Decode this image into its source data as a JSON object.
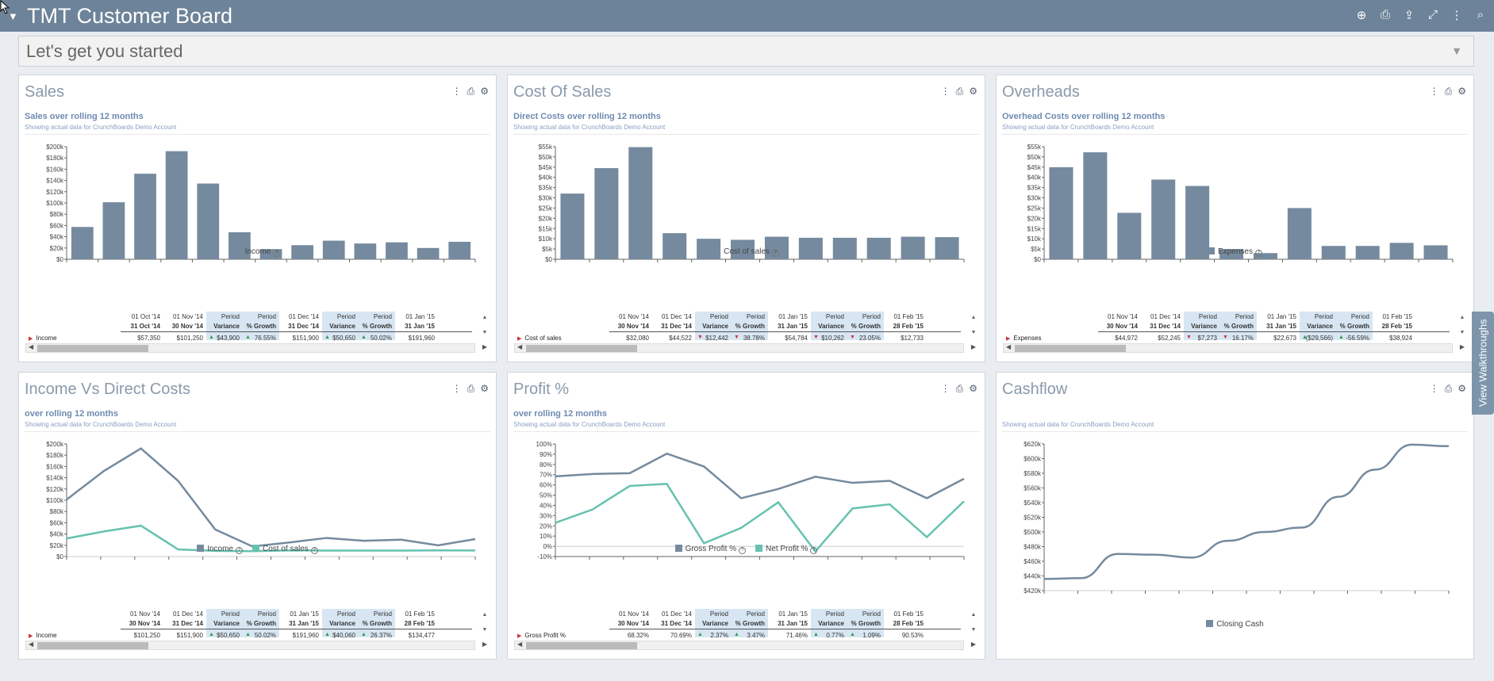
{
  "app": {
    "title": "TMT Customer Board"
  },
  "toolbar": {
    "icons": [
      "plus-circle-icon",
      "print-icon",
      "share-icon",
      "expand-icon",
      "more-vert-icon",
      "search-icon"
    ]
  },
  "started": {
    "label": "Let's get you started"
  },
  "walkthrough": {
    "label": "View Walkthroughs"
  },
  "colors": {
    "bar": "#758a9e",
    "line1": "#758a9e",
    "line2": "#66c2b0",
    "header": "#6d8399"
  },
  "panels": [
    {
      "id": "sales",
      "title": "Sales",
      "subtitle": "Sales over rolling 12 months",
      "desc": "Showing actual data for CrunchBoards Demo Account",
      "legend": [
        {
          "label": "Income",
          "color": "#758a9e"
        }
      ],
      "table": {
        "row_label": "Income",
        "headers": [
          {
            "top": "01 Oct '14",
            "bottom": "31 Oct '14",
            "value": "$57,350",
            "hl": false
          },
          {
            "top": "01 Nov '14",
            "bottom": "30 Nov '14",
            "value": "$101,250",
            "hl": false
          },
          {
            "top": "Period",
            "bottom": "Variance",
            "value": "$43,900",
            "hl": true,
            "arrow": "up"
          },
          {
            "top": "Period",
            "bottom": "% Growth",
            "value": "76.55%",
            "hl": true,
            "arrow": "up"
          },
          {
            "top": "01 Dec '14",
            "bottom": "31 Dec '14",
            "value": "$151,900",
            "hl": false
          },
          {
            "top": "Period",
            "bottom": "Variance",
            "value": "$50,650",
            "hl": true,
            "arrow": "up"
          },
          {
            "top": "Period",
            "bottom": "% Growth",
            "value": "50.02%",
            "hl": true,
            "arrow": "up"
          },
          {
            "top": "01 Jan '15",
            "bottom": "31 Jan '15",
            "value": "$191,960",
            "hl": false
          }
        ]
      }
    },
    {
      "id": "cost-of-sales",
      "title": "Cost Of Sales",
      "subtitle": "Direct Costs over rolling 12 months",
      "desc": "Showing actual data for CrunchBoards Demo Account",
      "legend": [
        {
          "label": "Cost of sales",
          "color": "#758a9e"
        }
      ],
      "table": {
        "row_label": "Cost of sales",
        "headers": [
          {
            "top": "01 Nov '14",
            "bottom": "30 Nov '14",
            "value": "$32,080",
            "hl": false
          },
          {
            "top": "01 Dec '14",
            "bottom": "31 Dec '14",
            "value": "$44,522",
            "hl": false
          },
          {
            "top": "Period",
            "bottom": "Variance",
            "value": "$12,442",
            "hl": true,
            "arrow": "down"
          },
          {
            "top": "Period",
            "bottom": "% Growth",
            "value": "38.78%",
            "hl": true,
            "arrow": "down"
          },
          {
            "top": "01 Jan '15",
            "bottom": "31 Jan '15",
            "value": "$54,784",
            "hl": false
          },
          {
            "top": "Period",
            "bottom": "Variance",
            "value": "$10,262",
            "hl": true,
            "arrow": "down"
          },
          {
            "top": "Period",
            "bottom": "% Growth",
            "value": "23.05%",
            "hl": true,
            "arrow": "down"
          },
          {
            "top": "01 Feb '15",
            "bottom": "28 Feb '15",
            "value": "$12,733",
            "hl": false
          }
        ]
      }
    },
    {
      "id": "overheads",
      "title": "Overheads",
      "subtitle": "Overhead Costs over rolling 12 months",
      "desc": "Showing actual data for CrunchBoards Demo Account",
      "legend": [
        {
          "label": "Expenses",
          "color": "#758a9e"
        }
      ],
      "table": {
        "row_label": "Expenses",
        "headers": [
          {
            "top": "01 Nov '14",
            "bottom": "30 Nov '14",
            "value": "$44,972",
            "hl": false
          },
          {
            "top": "01 Dec '14",
            "bottom": "31 Dec '14",
            "value": "$52,245",
            "hl": false
          },
          {
            "top": "Period",
            "bottom": "Variance",
            "value": "$7,273",
            "hl": true,
            "arrow": "down"
          },
          {
            "top": "Period",
            "bottom": "% Growth",
            "value": "16.17%",
            "hl": true,
            "arrow": "down"
          },
          {
            "top": "01 Jan '15",
            "bottom": "31 Jan '15",
            "value": "$22,673",
            "hl": false
          },
          {
            "top": "Period",
            "bottom": "Variance",
            "value": "($29,566)",
            "hl": true,
            "arrow": "up"
          },
          {
            "top": "Period",
            "bottom": "% Growth",
            "value": "-56.59%",
            "hl": true,
            "arrow": "up"
          },
          {
            "top": "01 Feb '15",
            "bottom": "28 Feb '15",
            "value": "$38,924",
            "hl": false
          }
        ]
      }
    },
    {
      "id": "income-vs-direct",
      "title": "Income Vs Direct Costs",
      "subtitle": "over rolling 12 months",
      "desc": "Showing actual data for CrunchBoards Demo Account",
      "legend": [
        {
          "label": "Income",
          "color": "#758a9e"
        },
        {
          "label": "Cost of sales",
          "color": "#66c2b0"
        }
      ],
      "table": {
        "row_label": "Income",
        "headers": [
          {
            "top": "01 Nov '14",
            "bottom": "30 Nov '14",
            "value": "$101,250",
            "hl": false
          },
          {
            "top": "01 Dec '14",
            "bottom": "31 Dec '14",
            "value": "$151,900",
            "hl": false
          },
          {
            "top": "Period",
            "bottom": "Variance",
            "value": "$50,650",
            "hl": true,
            "arrow": "up"
          },
          {
            "top": "Period",
            "bottom": "% Growth",
            "value": "50.02%",
            "hl": true,
            "arrow": "up"
          },
          {
            "top": "01 Jan '15",
            "bottom": "31 Jan '15",
            "value": "$191,960",
            "hl": false
          },
          {
            "top": "Period",
            "bottom": "Variance",
            "value": "$40,060",
            "hl": true,
            "arrow": "up"
          },
          {
            "top": "Period",
            "bottom": "% Growth",
            "value": "26.37%",
            "hl": true,
            "arrow": "up"
          },
          {
            "top": "01 Feb '15",
            "bottom": "28 Feb '15",
            "value": "$134,477",
            "hl": false
          }
        ]
      }
    },
    {
      "id": "profit-pct",
      "title": "Profit %",
      "subtitle": "over rolling 12 months",
      "desc": "Showing actual data for CrunchBoards Demo Account",
      "legend": [
        {
          "label": "Gross Profit %",
          "color": "#758a9e"
        },
        {
          "label": "Net Profit %",
          "color": "#66c2b0"
        }
      ],
      "table": {
        "row_label": "Gross Profit %",
        "headers": [
          {
            "top": "01 Nov '14",
            "bottom": "30 Nov '14",
            "value": "68.32%",
            "hl": false
          },
          {
            "top": "01 Dec '14",
            "bottom": "31 Dec '14",
            "value": "70.69%",
            "hl": false
          },
          {
            "top": "Period",
            "bottom": "Variance",
            "value": "2.37%",
            "hl": true,
            "arrow": "up"
          },
          {
            "top": "Period",
            "bottom": "% Growth",
            "value": "3.47%",
            "hl": true,
            "arrow": "up"
          },
          {
            "top": "01 Jan '15",
            "bottom": "31 Jan '15",
            "value": "71.46%",
            "hl": false
          },
          {
            "top": "Period",
            "bottom": "Variance",
            "value": "0.77%",
            "hl": true,
            "arrow": "up"
          },
          {
            "top": "Period",
            "bottom": "% Growth",
            "value": "1.09%",
            "hl": true,
            "arrow": "up"
          },
          {
            "top": "01 Feb '15",
            "bottom": "28 Feb '15",
            "value": "90.53%",
            "hl": false
          }
        ]
      }
    },
    {
      "id": "cashflow",
      "title": "Cashflow",
      "subtitle": "",
      "desc": "Showing actual data for CrunchBoards Demo Account",
      "legend": [
        {
          "label": "Closing Cash",
          "color": "#758a9e"
        }
      ]
    }
  ],
  "chart_data": [
    {
      "type": "bar",
      "panel": "sales",
      "series": [
        {
          "name": "Income",
          "values": [
            57350,
            101250,
            151900,
            191960,
            134477,
            48000,
            18000,
            25000,
            33000,
            28000,
            30000,
            20000,
            31000
          ]
        }
      ],
      "ylim": [
        0,
        200000
      ],
      "yticks": [
        "$0",
        "$20k",
        "$40k",
        "$60k",
        "$80k",
        "$100k",
        "$120k",
        "$140k",
        "$160k",
        "$180k",
        "$200k"
      ]
    },
    {
      "type": "bar",
      "panel": "cost-of-sales",
      "series": [
        {
          "name": "Cost of sales",
          "values": [
            32080,
            44522,
            54784,
            12733,
            10000,
            9500,
            11000,
            10500,
            10500,
            10500,
            11000,
            10800
          ]
        }
      ],
      "ylim": [
        0,
        55000
      ],
      "yticks": [
        "$0",
        "$5k",
        "$10k",
        "$15k",
        "$20k",
        "$25k",
        "$30k",
        "$35k",
        "$40k",
        "$45k",
        "$50k",
        "$55k"
      ]
    },
    {
      "type": "bar",
      "panel": "overheads",
      "series": [
        {
          "name": "Expenses",
          "values": [
            44972,
            52245,
            22673,
            38924,
            35800,
            5000,
            3000,
            25000,
            6500,
            6500,
            8000,
            6800
          ]
        }
      ],
      "ylim": [
        0,
        55000
      ],
      "yticks": [
        "$0",
        "$5k",
        "$10k",
        "$15k",
        "$20k",
        "$25k",
        "$30k",
        "$35k",
        "$40k",
        "$45k",
        "$50k",
        "$55k"
      ]
    },
    {
      "type": "line",
      "panel": "income-vs-direct",
      "series": [
        {
          "name": "Income",
          "values": [
            101250,
            151900,
            191960,
            134477,
            48000,
            18000,
            25000,
            33000,
            28000,
            30000,
            20000,
            31000
          ]
        },
        {
          "name": "Cost of sales",
          "values": [
            32080,
            44522,
            54784,
            12733,
            10000,
            9500,
            11000,
            10500,
            10500,
            10500,
            11000,
            10800
          ]
        }
      ],
      "ylim": [
        0,
        200000
      ],
      "yticks": [
        "$0",
        "$20k",
        "$40k",
        "$60k",
        "$80k",
        "$100k",
        "$120k",
        "$140k",
        "$160k",
        "$180k",
        "$200k"
      ]
    },
    {
      "type": "line",
      "panel": "profit-pct",
      "series": [
        {
          "name": "Gross Profit %",
          "values": [
            68.32,
            70.69,
            71.46,
            90.53,
            78,
            47,
            56,
            68,
            62,
            64,
            47,
            66
          ]
        },
        {
          "name": "Net Profit %",
          "values": [
            23,
            36,
            59,
            61,
            3,
            18,
            43,
            -5,
            37,
            41,
            9,
            44
          ]
        }
      ],
      "ylim": [
        -10,
        100
      ],
      "yticks": [
        "-10%",
        "0%",
        "10%",
        "20%",
        "30%",
        "40%",
        "50%",
        "60%",
        "70%",
        "80%",
        "90%",
        "100%"
      ]
    },
    {
      "type": "line",
      "panel": "cashflow",
      "series": [
        {
          "name": "Closing Cash",
          "values": [
            436000,
            437000,
            470000,
            469000,
            465000,
            488000,
            500000,
            506000,
            548000,
            585000,
            619000,
            617000
          ]
        }
      ],
      "ylim": [
        420000,
        620000
      ],
      "yticks": [
        "$420k",
        "$440k",
        "$460k",
        "$480k",
        "$500k",
        "$520k",
        "$540k",
        "$560k",
        "$580k",
        "$600k",
        "$620k"
      ]
    }
  ]
}
